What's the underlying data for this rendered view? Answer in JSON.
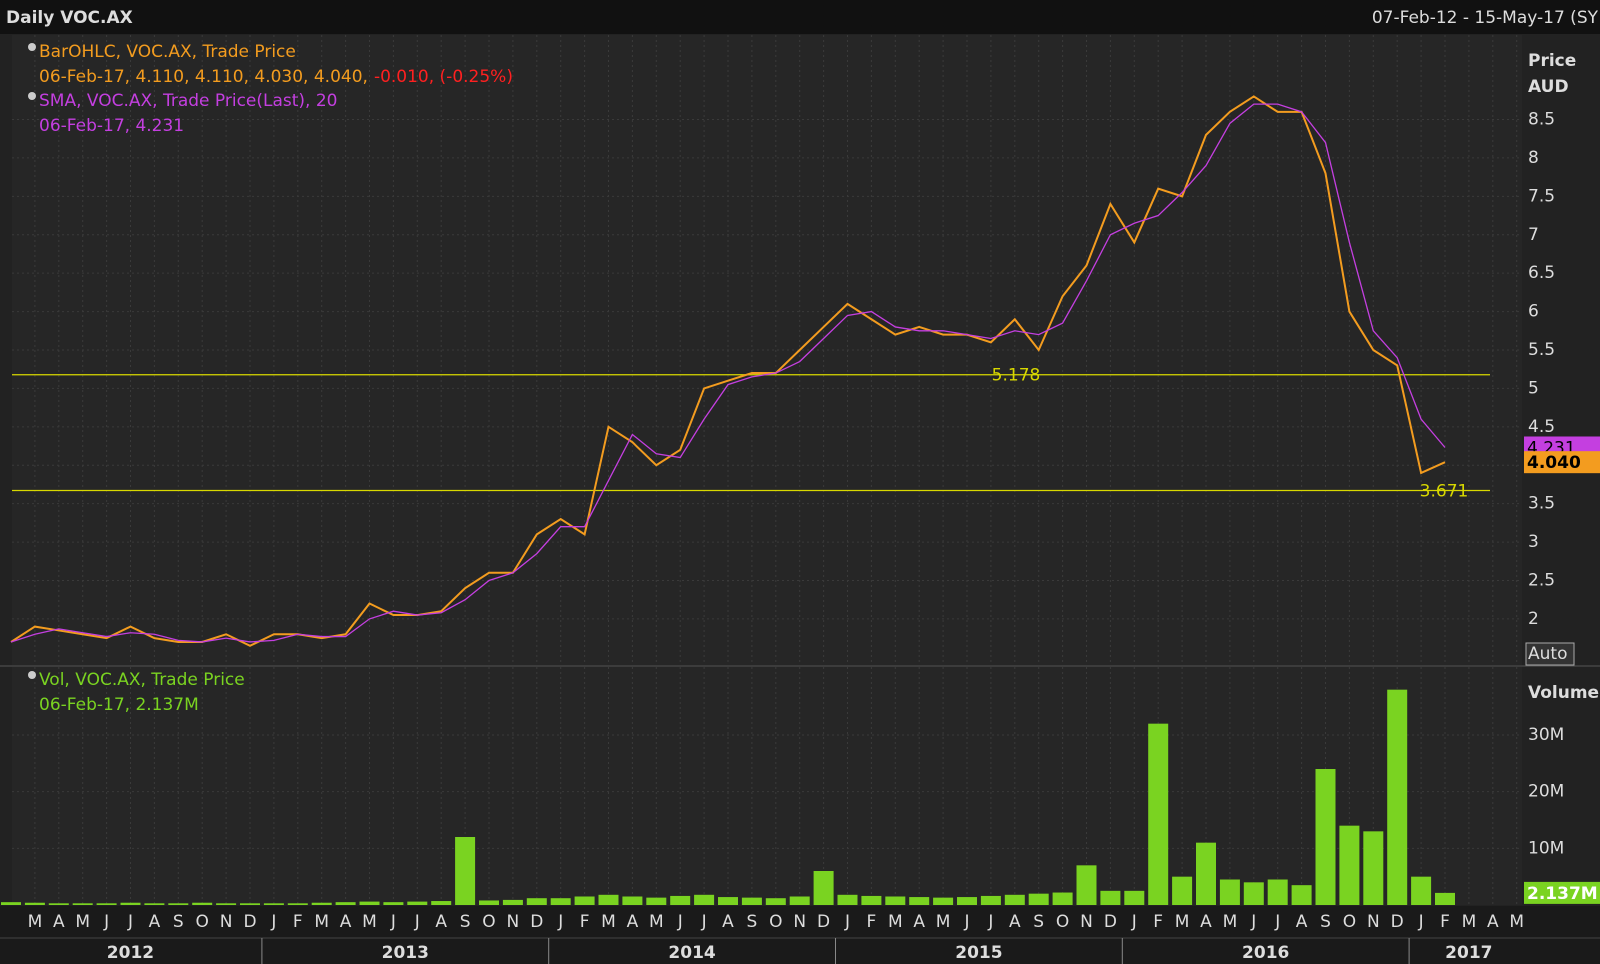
{
  "header": {
    "title": "Daily VOC.AX",
    "range": "07-Feb-12 - 15-May-17 (SY"
  },
  "chart_data": [
    {
      "type": "line",
      "ylabel": "Price",
      "yunit": "AUD",
      "scale_mode": "Auto",
      "ylim": [
        1.4,
        9.6
      ],
      "yticks": [
        2,
        2.5,
        3,
        3.5,
        4,
        4.5,
        5,
        5.5,
        6,
        6.5,
        7,
        7.5,
        8,
        8.5
      ],
      "grid": true,
      "series": [
        {
          "name": "BarOHLC, VOC.AX, Trade Price",
          "color": "#f39c1f",
          "readout": "06-Feb-17, 4.110, 4.110, 4.030, 4.040,",
          "change": "-0.010, (-0.25%)",
          "change_color": "#ff2020",
          "values": [
            1.7,
            1.9,
            1.85,
            1.8,
            1.75,
            1.9,
            1.75,
            1.7,
            1.7,
            1.8,
            1.65,
            1.8,
            1.8,
            1.75,
            1.8,
            2.2,
            2.05,
            2.05,
            2.1,
            2.4,
            2.6,
            2.6,
            3.1,
            3.3,
            3.1,
            4.5,
            4.3,
            4.0,
            4.2,
            5.0,
            5.1,
            5.2,
            5.2,
            5.5,
            5.8,
            6.1,
            5.9,
            5.7,
            5.8,
            5.7,
            5.7,
            5.6,
            5.9,
            5.5,
            6.2,
            6.6,
            7.4,
            6.9,
            7.6,
            7.5,
            8.3,
            8.6,
            8.8,
            8.6,
            8.6,
            7.8,
            6.0,
            5.5,
            5.3,
            3.9,
            4.04,
            null,
            null,
            null
          ]
        },
        {
          "name": "SMA, VOC.AX, Trade Price(Last),  20",
          "color": "#c43fe0",
          "readout": "06-Feb-17, 4.231",
          "values": [
            1.7,
            1.8,
            1.87,
            1.82,
            1.77,
            1.82,
            1.8,
            1.72,
            1.7,
            1.75,
            1.7,
            1.72,
            1.8,
            1.77,
            1.77,
            2.0,
            2.1,
            2.05,
            2.08,
            2.25,
            2.5,
            2.6,
            2.85,
            3.2,
            3.2,
            3.8,
            4.4,
            4.15,
            4.1,
            4.6,
            5.05,
            5.15,
            5.2,
            5.35,
            5.65,
            5.95,
            6.0,
            5.8,
            5.75,
            5.75,
            5.7,
            5.65,
            5.75,
            5.7,
            5.85,
            6.4,
            7.0,
            7.15,
            7.25,
            7.55,
            7.9,
            8.45,
            8.7,
            8.7,
            8.6,
            8.2,
            6.9,
            5.75,
            5.4,
            4.6,
            4.231,
            null,
            null,
            null
          ]
        }
      ],
      "levels": [
        {
          "value": 5.178,
          "label": "5.178"
        },
        {
          "value": 3.671,
          "label": "3.671"
        }
      ],
      "level_color": "#d8d800",
      "last_tags": [
        {
          "value": 4.231,
          "label": "4.231",
          "color": "#c43fe0"
        },
        {
          "value": 4.04,
          "label": "4.040",
          "color": "#f39c1f"
        }
      ]
    },
    {
      "type": "bar",
      "ylabel": "Volume",
      "ylim": [
        0,
        42
      ],
      "yticks": [
        {
          "value": 10,
          "label": "10M"
        },
        {
          "value": 20,
          "label": "20M"
        },
        {
          "value": 30,
          "label": "30M"
        }
      ],
      "series": [
        {
          "name": "Vol, VOC.AX, Trade Price",
          "color": "#7ad321",
          "readout": "06-Feb-17, 2.137M",
          "values": [
            0.5,
            0.4,
            0.3,
            0.3,
            0.3,
            0.4,
            0.3,
            0.3,
            0.4,
            0.3,
            0.3,
            0.3,
            0.3,
            0.4,
            0.5,
            0.6,
            0.5,
            0.6,
            0.7,
            12,
            0.8,
            0.9,
            1.2,
            1.2,
            1.5,
            1.8,
            1.5,
            1.3,
            1.6,
            1.8,
            1.4,
            1.3,
            1.2,
            1.5,
            6,
            1.8,
            1.6,
            1.5,
            1.4,
            1.3,
            1.4,
            1.6,
            1.8,
            2,
            2.2,
            7,
            2.5,
            2.5,
            32,
            5,
            11,
            4.5,
            4,
            4.5,
            3.5,
            24,
            14,
            13,
            38,
            5,
            2.137,
            null,
            null,
            null
          ]
        }
      ],
      "last_tags": [
        {
          "value": 2.137,
          "label": "2.137M",
          "color": "#7ad321"
        }
      ],
      "categories": [
        null,
        "M",
        "A",
        "M",
        "J",
        "J",
        "A",
        "S",
        "O",
        "N",
        "D",
        "J",
        "F",
        "M",
        "A",
        "M",
        "J",
        "J",
        "A",
        "S",
        "O",
        "N",
        "D",
        "J",
        "F",
        "M",
        "A",
        "M",
        "J",
        "J",
        "A",
        "S",
        "O",
        "N",
        "D",
        "J",
        "F",
        "M",
        "A",
        "M",
        "J",
        "J",
        "A",
        "S",
        "O",
        "N",
        "D",
        "J",
        "F",
        "M",
        "A",
        "M",
        "J",
        "J",
        "A",
        "S",
        "O",
        "N",
        "D",
        "J",
        "F",
        "M",
        "A",
        "M"
      ],
      "years": [
        "2012",
        "2013",
        "2014",
        "2015",
        "2016",
        "2017"
      ]
    }
  ]
}
